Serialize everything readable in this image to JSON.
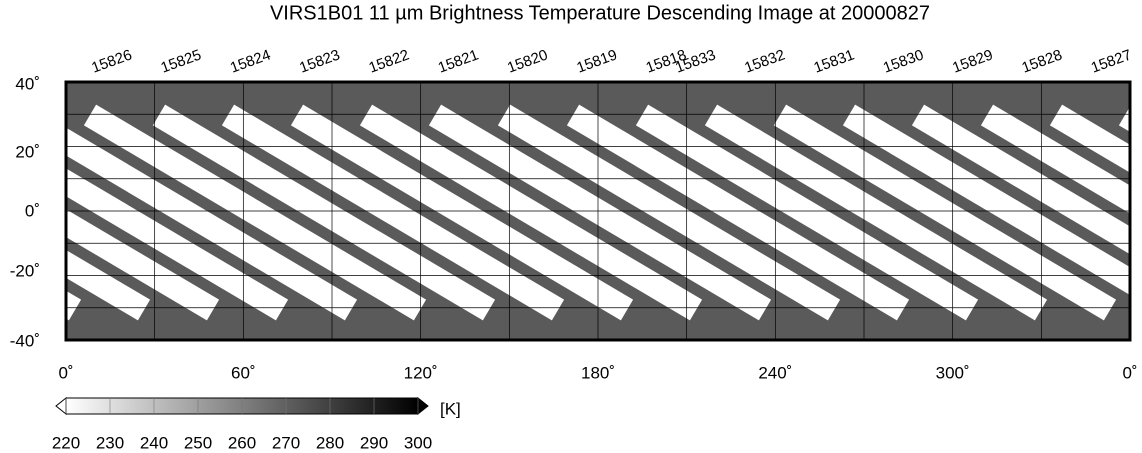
{
  "title": "VIRS1B01 11 µm Brightness Temperature Descending Image at 20000827",
  "orbits": [
    "15826",
    "15825",
    "15824",
    "15823",
    "15822",
    "15821",
    "15820",
    "15819",
    "15818",
    "15833",
    "15832",
    "15831",
    "15830",
    "15829",
    "15828",
    "15827"
  ],
  "latitude_labels": [
    "40˚",
    "20˚",
    "0˚",
    "-20˚",
    "-40˚"
  ],
  "longitude_labels": [
    "0˚",
    "60˚",
    "120˚",
    "180˚",
    "240˚",
    "300˚",
    "0˚"
  ],
  "colorbar": {
    "unit": "[K]",
    "labels": [
      220,
      230,
      240,
      250,
      260,
      270,
      280,
      290,
      300
    ]
  }
}
